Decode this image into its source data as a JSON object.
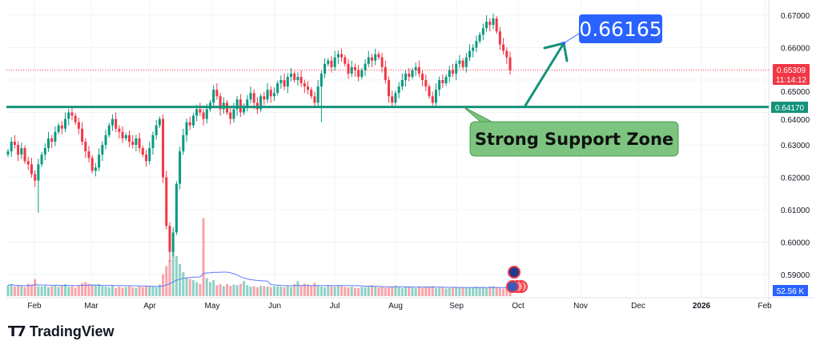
{
  "chart_data": {
    "type": "candlestick",
    "symbol_note": "",
    "y_axis": {
      "ticks": [
        "0.67000",
        "0.66000",
        "0.65000",
        "0.64000",
        "0.63000",
        "0.62000",
        "0.61000",
        "0.60000",
        "0.59000"
      ],
      "ylim": [
        0.5855,
        0.6745
      ]
    },
    "x_axis": {
      "ticks": [
        "Feb",
        "Mar",
        "Apr",
        "May",
        "Jun",
        "Jul",
        "Aug",
        "Sep",
        "Oct",
        "Nov",
        "Dec",
        "2026",
        "Feb"
      ]
    },
    "closes": [
      0.628,
      0.631,
      0.63,
      0.627,
      0.629,
      0.625,
      0.624,
      0.621,
      0.619,
      0.624,
      0.627,
      0.629,
      0.632,
      0.631,
      0.634,
      0.636,
      0.635,
      0.638,
      0.64,
      0.639,
      0.637,
      0.635,
      0.631,
      0.628,
      0.626,
      0.622,
      0.623,
      0.627,
      0.63,
      0.633,
      0.636,
      0.638,
      0.635,
      0.634,
      0.632,
      0.633,
      0.631,
      0.63,
      0.632,
      0.629,
      0.627,
      0.625,
      0.629,
      0.633,
      0.636,
      0.638,
      0.62,
      0.605,
      0.597,
      0.603,
      0.618,
      0.628,
      0.633,
      0.637,
      0.636,
      0.639,
      0.641,
      0.64,
      0.638,
      0.641,
      0.643,
      0.647,
      0.645,
      0.641,
      0.643,
      0.64,
      0.638,
      0.641,
      0.644,
      0.64,
      0.642,
      0.644,
      0.646,
      0.643,
      0.641,
      0.645,
      0.644,
      0.647,
      0.645,
      0.646,
      0.649,
      0.65,
      0.648,
      0.651,
      0.652,
      0.65,
      0.651,
      0.649,
      0.648,
      0.647,
      0.645,
      0.643,
      0.648,
      0.652,
      0.655,
      0.656,
      0.654,
      0.657,
      0.658,
      0.657,
      0.655,
      0.652,
      0.654,
      0.653,
      0.651,
      0.653,
      0.655,
      0.657,
      0.656,
      0.658,
      0.657,
      0.654,
      0.65,
      0.645,
      0.643,
      0.646,
      0.648,
      0.65,
      0.652,
      0.651,
      0.653,
      0.654,
      0.652,
      0.65,
      0.648,
      0.645,
      0.643,
      0.647,
      0.65,
      0.649,
      0.651,
      0.653,
      0.652,
      0.655,
      0.656,
      0.654,
      0.657,
      0.659,
      0.66,
      0.662,
      0.664,
      0.666,
      0.668,
      0.667,
      0.669,
      0.665,
      0.661,
      0.659,
      0.657,
      0.65309
    ],
    "low_overrides": [
      {
        "i": 9,
        "low": 0.609
      },
      {
        "i": 48,
        "low": 0.594
      },
      {
        "i": 93,
        "low": 0.637
      }
    ],
    "high_overrides": [
      {
        "i": 144,
        "high": 0.6705
      }
    ],
    "volumes_k": [
      55,
      60,
      48,
      52,
      50,
      45,
      62,
      58,
      85,
      50,
      48,
      52,
      45,
      50,
      55,
      47,
      52,
      60,
      48,
      50,
      42,
      55,
      65,
      70,
      62,
      58,
      55,
      60,
      50,
      48,
      45,
      52,
      40,
      48,
      42,
      46,
      50,
      44,
      40,
      48,
      45,
      52,
      48,
      50,
      44,
      58,
      110,
      150,
      180,
      240,
      200,
      160,
      120,
      90,
      85,
      80,
      70,
      60,
      390,
      90,
      70,
      80,
      55,
      60,
      50,
      60,
      52,
      58,
      55,
      62,
      75,
      55,
      48,
      50,
      45,
      52,
      50,
      48,
      46,
      50,
      50,
      48,
      45,
      52,
      46,
      60,
      75,
      55,
      62,
      58,
      50,
      66,
      52,
      48,
      45,
      55,
      50,
      48,
      52,
      50,
      46,
      44,
      48,
      42,
      40,
      47,
      45,
      50,
      55,
      48,
      44,
      46,
      42,
      45,
      48,
      52,
      45,
      40,
      44,
      46,
      45,
      40,
      48,
      42,
      46,
      44,
      50,
      40,
      42,
      45,
      38,
      40,
      42,
      45,
      40,
      44,
      42,
      40,
      45,
      48,
      42,
      45,
      40,
      48,
      50,
      45,
      40,
      38,
      42,
      44
    ],
    "support_level": 0.6417,
    "target_level": 0.66165,
    "last_price": 0.65309
  },
  "labels": {
    "last_price": "0.65309",
    "countdown": "11:14:12",
    "support_price": "0.64170",
    "target": "0.66165",
    "callout": "Strong Support Zone",
    "volume_ma": "52.56 K"
  },
  "colors": {
    "up": "#089981",
    "down": "#f23645",
    "support": "#14937a",
    "target_bg": "#2962ff",
    "callout_bg": "#7cc47f",
    "vol_ma": "#5b7cf5"
  },
  "branding": {
    "name": "TradingView"
  }
}
